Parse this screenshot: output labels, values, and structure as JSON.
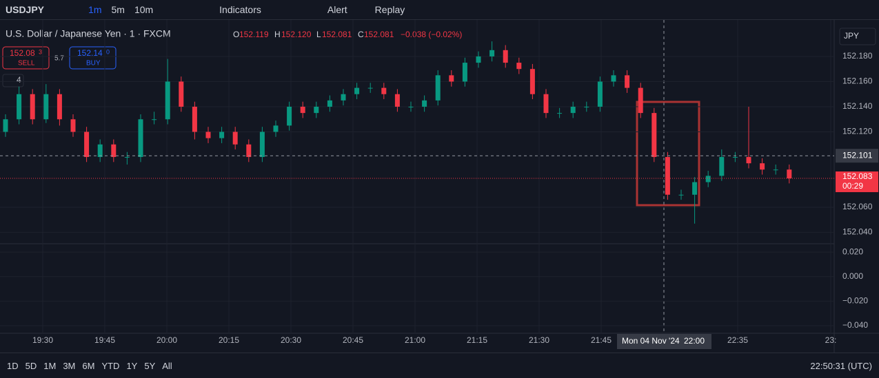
{
  "toolbar": {
    "symbol": "USDJPY",
    "intervals": [
      "1m",
      "5m",
      "10m"
    ],
    "indicators": "Indicators",
    "alert": "Alert",
    "replay": "Replay"
  },
  "legend": {
    "title": "U.S. Dollar / Japanese Yen · 1 · FXCM",
    "o_key": "O",
    "o": "152.119",
    "h_key": "H",
    "h": "152.120",
    "l_key": "L",
    "l": "152.081",
    "c_key": "C",
    "c": "152.081",
    "change": "−0.038 (−0.02%)"
  },
  "trade": {
    "sell_main": "152.08",
    "sell_sup": "3",
    "sell": "SELL",
    "spread": "5.7",
    "buy_main": "152.14",
    "buy_sup": "0",
    "buy": "BUY",
    "collapse": "4"
  },
  "currency": "JPY",
  "chart_data": {
    "type": "candlestick",
    "open": [
      152.12,
      152.13,
      152.15,
      152.13,
      152.15,
      152.13,
      152.12,
      152.1,
      152.11,
      152.1,
      152.1,
      152.13,
      152.13,
      152.16,
      152.14,
      152.12,
      152.115,
      152.12,
      152.11,
      152.1,
      152.12,
      152.125,
      152.14,
      152.135,
      152.14,
      152.145,
      152.15,
      152.155,
      152.155,
      152.15,
      152.14,
      152.14,
      152.145,
      152.165,
      152.16,
      152.175,
      152.18,
      152.185,
      152.175,
      152.17,
      152.15,
      152.135,
      152.135,
      152.14,
      152.14,
      152.16,
      152.165,
      152.155,
      152.135,
      152.1,
      152.07,
      152.07,
      152.08,
      152.085,
      152.1,
      152.1,
      152.095,
      152.09,
      152.09
    ],
    "high": [
      152.134,
      152.156,
      152.154,
      152.158,
      152.154,
      152.134,
      152.124,
      152.114,
      152.114,
      152.104,
      152.134,
      152.136,
      152.178,
      152.164,
      152.144,
      152.124,
      152.124,
      152.124,
      152.114,
      152.124,
      152.129,
      152.144,
      152.144,
      152.144,
      152.149,
      152.154,
      152.159,
      152.159,
      152.159,
      152.154,
      152.144,
      152.149,
      152.169,
      152.169,
      152.179,
      152.184,
      152.192,
      152.189,
      152.179,
      152.174,
      152.154,
      152.139,
      152.144,
      152.144,
      152.164,
      152.169,
      152.169,
      152.159,
      152.139,
      152.104,
      152.074,
      152.084,
      152.089,
      152.106,
      152.104,
      152.14,
      152.099,
      152.094,
      152.094
    ],
    "low": [
      152.116,
      152.126,
      152.126,
      152.127,
      152.125,
      152.116,
      152.096,
      152.096,
      152.096,
      152.094,
      152.096,
      152.126,
      152.126,
      152.136,
      152.114,
      152.111,
      152.111,
      152.106,
      152.096,
      152.096,
      152.116,
      152.121,
      152.131,
      152.131,
      152.136,
      152.141,
      152.146,
      152.151,
      152.146,
      152.136,
      152.136,
      152.136,
      152.141,
      152.156,
      152.156,
      152.171,
      152.176,
      152.171,
      152.166,
      152.146,
      152.131,
      152.131,
      152.131,
      152.136,
      152.136,
      152.156,
      152.151,
      152.131,
      152.096,
      152.066,
      152.066,
      152.047,
      152.076,
      152.081,
      152.096,
      152.091,
      152.086,
      152.086,
      152.079
    ],
    "close": [
      152.13,
      152.15,
      152.13,
      152.15,
      152.13,
      152.12,
      152.1,
      152.11,
      152.1,
      152.1,
      152.13,
      152.13,
      152.16,
      152.14,
      152.12,
      152.115,
      152.12,
      152.11,
      152.1,
      152.12,
      152.125,
      152.14,
      152.135,
      152.14,
      152.145,
      152.15,
      152.155,
      152.155,
      152.15,
      152.14,
      152.14,
      152.145,
      152.165,
      152.16,
      152.175,
      152.18,
      152.185,
      152.175,
      152.17,
      152.15,
      152.135,
      152.135,
      152.14,
      152.14,
      152.16,
      152.165,
      152.155,
      152.135,
      152.1,
      152.07,
      152.07,
      152.08,
      152.085,
      152.1,
      152.1,
      152.095,
      152.09,
      152.09,
      152.083
    ],
    "up_color": "#089981",
    "down_color": "#f23645",
    "ylim": [
      152.031,
      152.209
    ],
    "yticks": [
      {
        "value": 152.18,
        "label": "152.180"
      },
      {
        "value": 152.16,
        "label": "152.160"
      },
      {
        "value": 152.14,
        "label": "152.140"
      },
      {
        "value": 152.12,
        "label": "152.120"
      },
      {
        "value": 152.06,
        "label": "152.060"
      },
      {
        "value": 152.04,
        "label": "152.040"
      }
    ],
    "crosshair": {
      "value": 152.101,
      "label": "152.101",
      "time": "Mon 04 Nov '24",
      "clock": "22:00"
    },
    "last": {
      "value": 152.083,
      "label": "152.083",
      "countdown": "00:29"
    },
    "time_labels": [
      "19:30",
      "19:45",
      "20:00",
      "20:15",
      "20:30",
      "20:45",
      "21:00",
      "21:15",
      "21:30",
      "21:45",
      "22:35",
      "23:"
    ],
    "pane2": {
      "ylim": [
        -0.0462,
        0.0257
      ],
      "yticks": [
        {
          "value": 0.02,
          "label": "0.020"
        },
        {
          "value": 0,
          "label": "0.000"
        },
        {
          "value": -0.02,
          "label": "−0.020"
        },
        {
          "value": -0.04,
          "label": "−0.040"
        }
      ]
    }
  },
  "ranges": [
    "1D",
    "5D",
    "1M",
    "3M",
    "6M",
    "YTD",
    "1Y",
    "5Y",
    "All"
  ],
  "clock": "22:50:31 (UTC)"
}
